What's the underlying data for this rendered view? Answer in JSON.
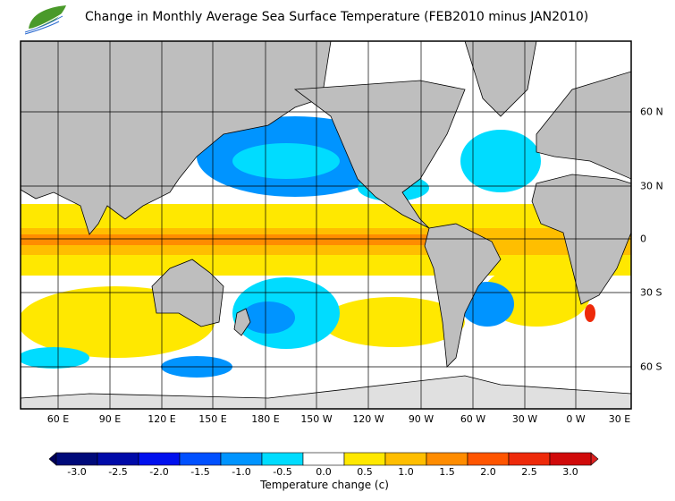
{
  "title": "Change in Monthly Average Sea Surface Temperature (FEB2010 minus JAN2010)",
  "map": {
    "longitude_labels": [
      "60 E",
      "90 E",
      "120 E",
      "150 E",
      "180 E",
      "150 W",
      "120 W",
      "90 W",
      "60 W",
      "30 W",
      "0 W",
      "30 E"
    ],
    "latitude_labels": [
      "60 N",
      "30 N",
      "0",
      "30 S",
      "60 S"
    ],
    "land_color": "#bebebe",
    "sea_ice_color": "#e0e0e0"
  },
  "colorbar": {
    "label": "Temperature change  (c)",
    "ticks": [
      "-3.0",
      "-2.5",
      "-2.0",
      "-1.5",
      "-1.0",
      "-0.5",
      "0.0",
      "0.5",
      "1.0",
      "1.5",
      "2.0",
      "2.5",
      "3.0"
    ],
    "colors": [
      "#000a7a",
      "#000aa8",
      "#0010ee",
      "#0050ff",
      "#0094ff",
      "#00dcff",
      "#ffffff",
      "#ffe800",
      "#ffbe00",
      "#ff8c00",
      "#ff5500",
      "#ee2a0a",
      "#d00a0a"
    ],
    "under_color": "#00005a",
    "over_color": "#dd2020"
  }
}
